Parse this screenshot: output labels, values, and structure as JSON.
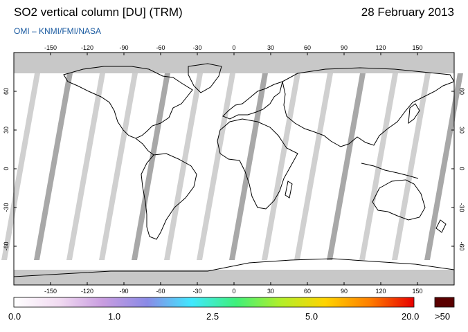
{
  "title": "SO2 vertical column [DU] (TRM)",
  "date": "28 February 2013",
  "source": "OMI – KNMI/FMI/NASA",
  "map": {
    "lon_ticks": [
      -150,
      -120,
      -90,
      -60,
      -30,
      0,
      30,
      60,
      90,
      120,
      150
    ],
    "lat_ticks": [
      60,
      30,
      0,
      -30,
      -60
    ],
    "lon_range": [
      -180,
      180
    ],
    "lat_range": [
      -90,
      90
    ],
    "projection": "equirectangular",
    "no_data_color": "#c8c8c8",
    "background_color": "#ffffff"
  },
  "colorbar": {
    "labels": [
      "0.0",
      "1.0",
      "2.5",
      "5.0",
      "20.0"
    ],
    "overflow_label": ">50",
    "overflow_color": "#5a0000",
    "stops": [
      "#ffffff",
      "#f2dcf2",
      "#c99de0",
      "#8a8ae6",
      "#40e8ff",
      "#3ff07a",
      "#b2ef2a",
      "#ffd400",
      "#ff7f00",
      "#e80000"
    ]
  }
}
